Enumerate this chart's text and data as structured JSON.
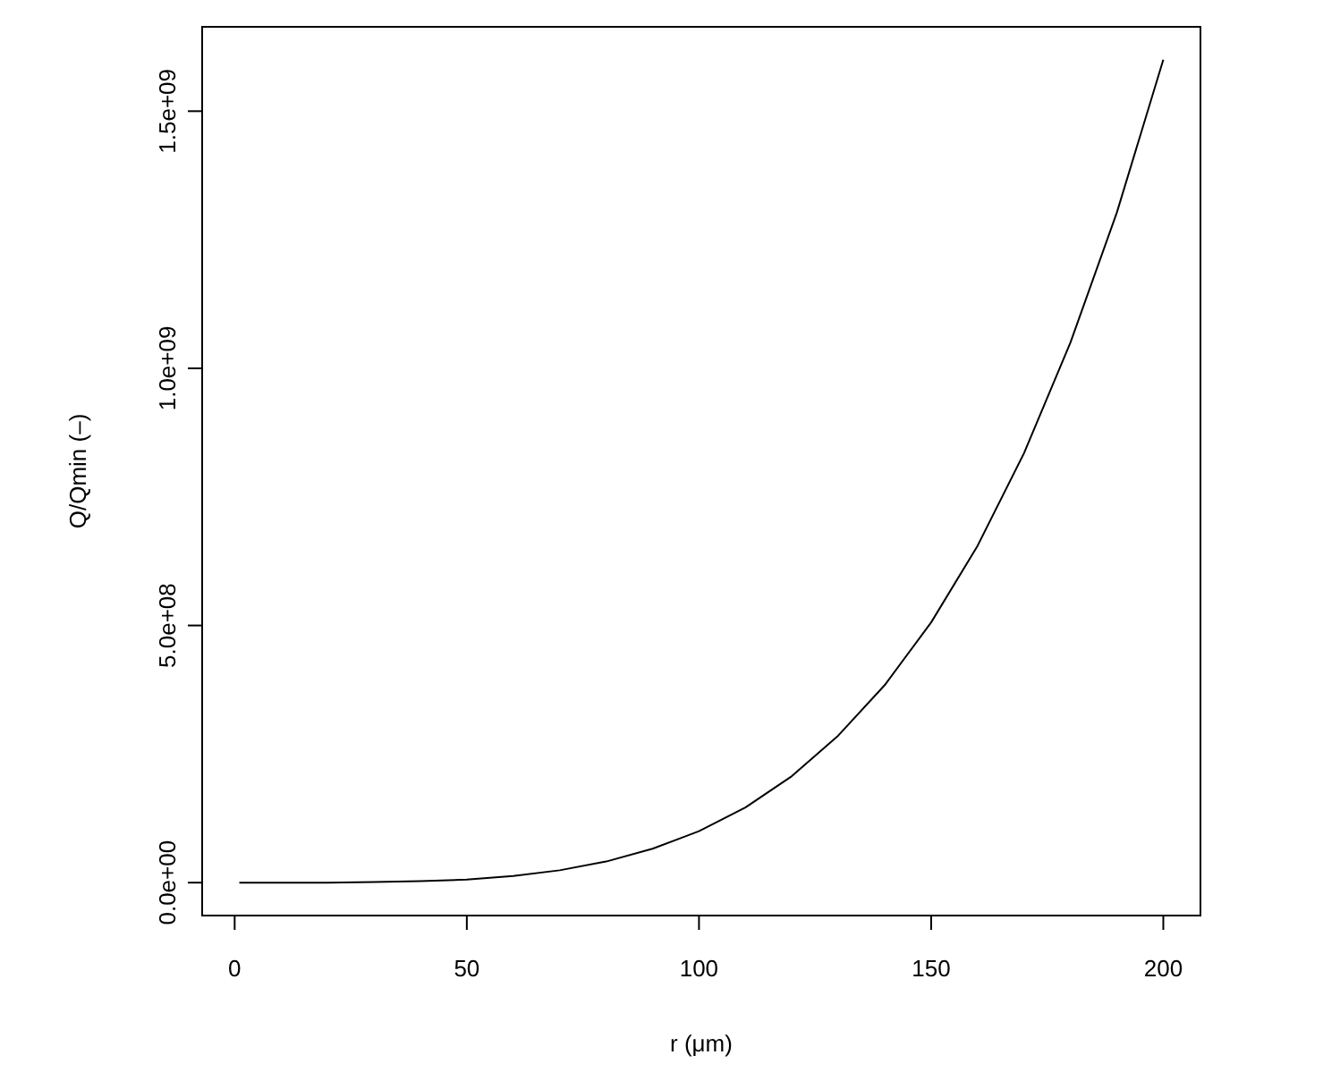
{
  "chart_data": {
    "type": "line",
    "xlabel": "r (μm)",
    "ylabel": "Q/Qmin (–)",
    "x": [
      1,
      10,
      20,
      30,
      40,
      50,
      60,
      70,
      80,
      90,
      100,
      110,
      120,
      130,
      140,
      150,
      160,
      170,
      180,
      190,
      200
    ],
    "series": [
      {
        "color": "#000000",
        "values": [
          0,
          0,
          0,
          1000000,
          3000000,
          6000000,
          13000000,
          24000000,
          41000000,
          66000000,
          100000000,
          146000000,
          207000000,
          286000000,
          384000000,
          506000000,
          655000000,
          835000000,
          1050000000,
          1303000000,
          1600000000
        ]
      }
    ],
    "xlim": [
      -7,
      208
    ],
    "ylim": [
      -64000000,
      1664000000
    ],
    "xticks": [
      0,
      50,
      100,
      150,
      200
    ],
    "yticks": [
      {
        "value": 0,
        "label": "0.0e+00"
      },
      {
        "value": 500000000,
        "label": "5.0e+08"
      },
      {
        "value": 1000000000,
        "label": "1.0e+09"
      },
      {
        "value": 1500000000,
        "label": "1.5e+09"
      }
    ],
    "grid": false,
    "marker": "none",
    "line_style": "solid"
  }
}
